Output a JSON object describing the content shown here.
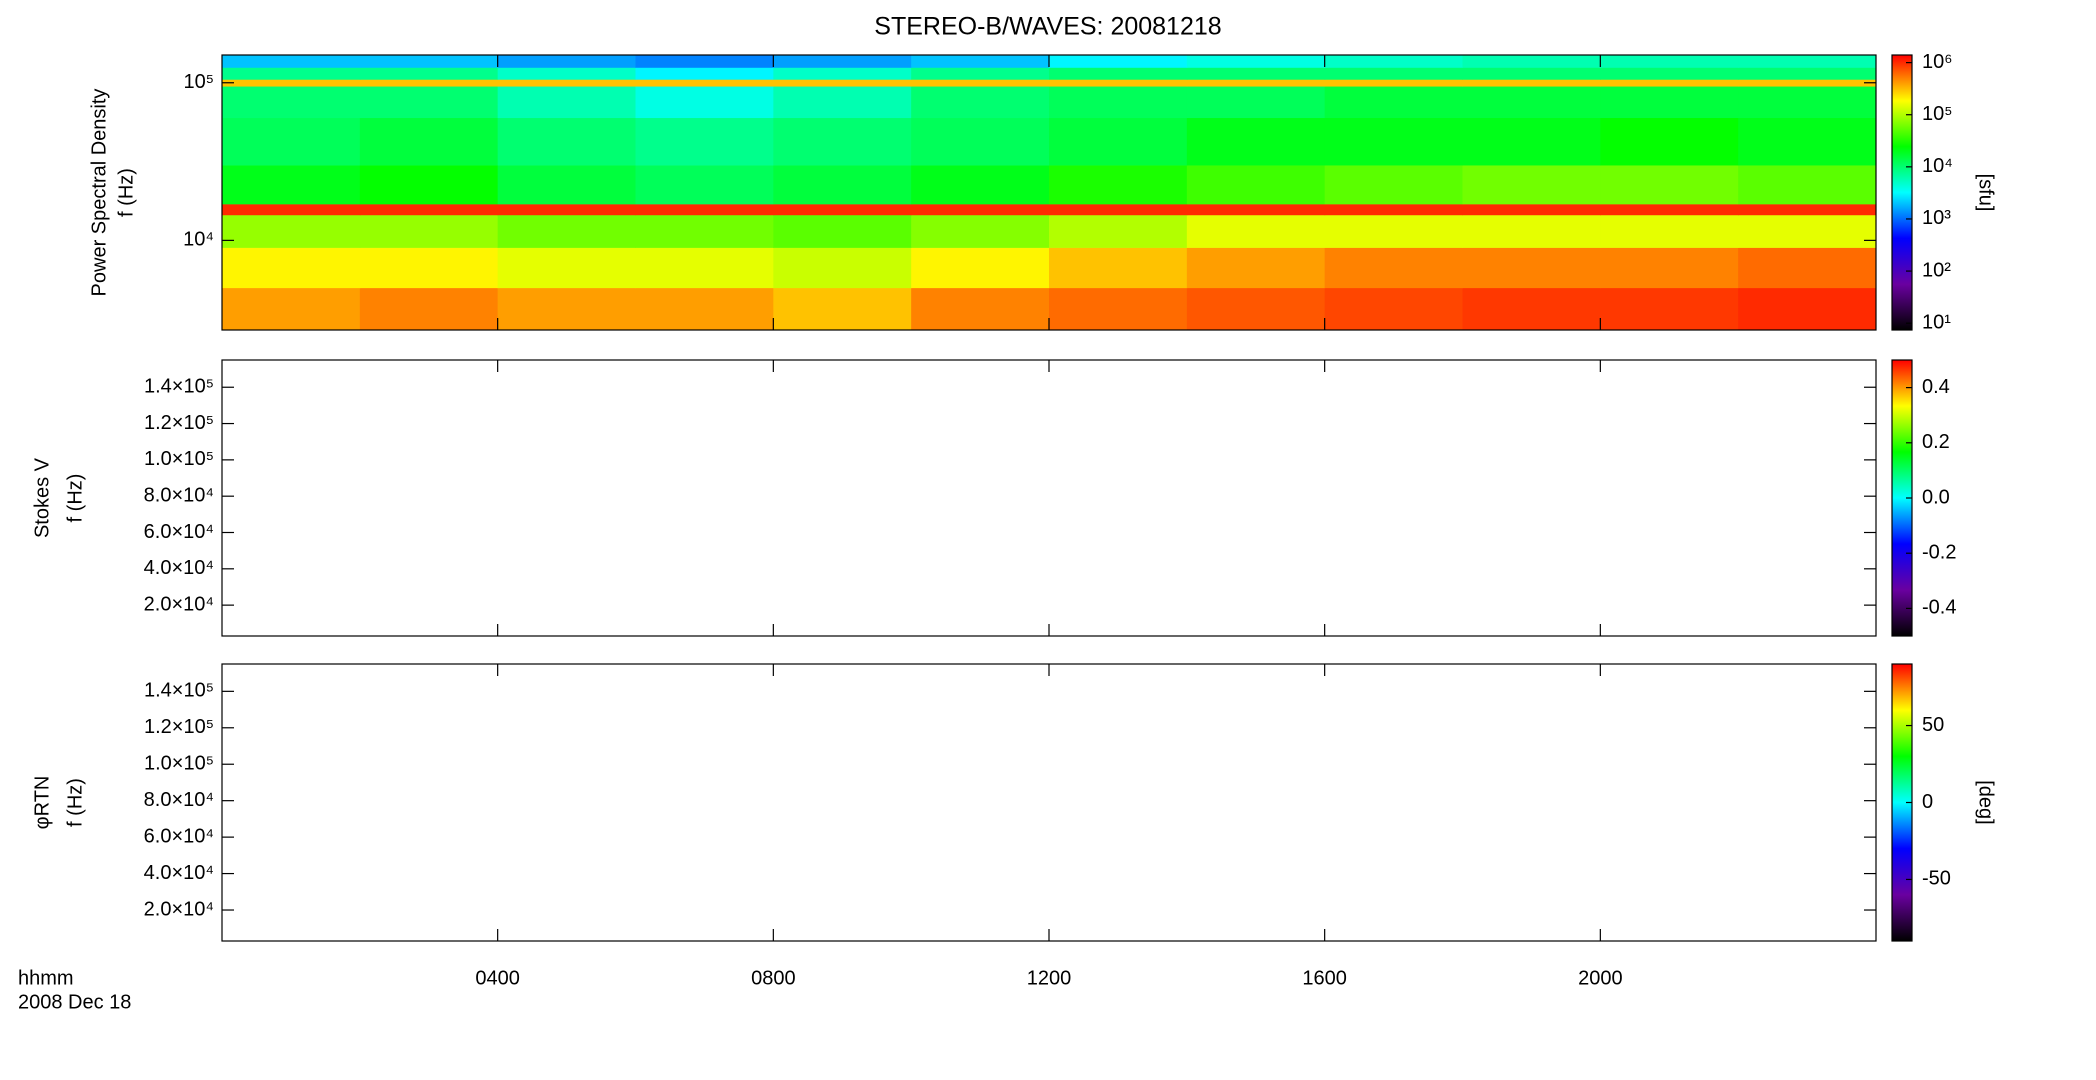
{
  "chart_data": [
    {
      "type": "heatmap",
      "title": "STEREO-B/WAVES: 20081218",
      "ylabel": "Power Spectral Density",
      "ylabel2": "f (Hz)",
      "zlabel": "[sfu]",
      "ylog": true,
      "zlog": true,
      "xlim": [
        0,
        24
      ],
      "xticks": [
        4,
        8,
        12,
        16,
        20
      ],
      "ylim": [
        2700,
        150000
      ],
      "yticks": [
        {
          "value": 100000,
          "label": "10⁵"
        },
        {
          "value": 10000,
          "label": "10⁴"
        }
      ],
      "zlim": [
        7.4,
        1400000
      ],
      "zticks": [
        {
          "value": 1000000,
          "label": "10⁶"
        },
        {
          "value": 100000,
          "label": "10⁵"
        },
        {
          "value": 10000,
          "label": "10⁴"
        },
        {
          "value": 1000,
          "label": "10³"
        },
        {
          "value": 100,
          "label": "10²"
        },
        {
          "value": 10,
          "label": "10¹"
        }
      ],
      "colormap": [
        "#000000",
        "#6a00a0",
        "#0000ff",
        "#00ffff",
        "#00ff00",
        "#ffff00",
        "#ff0000"
      ],
      "x": [
        0,
        2,
        4,
        6,
        8,
        10,
        12,
        14,
        16,
        18,
        20,
        22,
        24
      ],
      "y": [
        2700,
        5000,
        9000,
        14500,
        17000,
        30000,
        60000,
        95000,
        105000,
        125000,
        150000
      ],
      "values": [
        [
          400000,
          500000,
          400000,
          400000,
          300000,
          500000,
          600000,
          700000,
          800000,
          900000,
          900000,
          1000000
        ],
        [
          200000,
          200000,
          150000,
          150000,
          120000,
          200000,
          300000,
          400000,
          500000,
          500000,
          500000,
          600000
        ],
        [
          80000,
          80000,
          60000,
          60000,
          50000,
          70000,
          100000,
          150000,
          150000,
          150000,
          150000,
          150000
        ],
        [
          1000000,
          1000000,
          1000000,
          1000000,
          1000000,
          1000000,
          1000000,
          1000000,
          1000000,
          1000000,
          1000000,
          1000000
        ],
        [
          20000,
          25000,
          15000,
          12000,
          15000,
          20000,
          30000,
          40000,
          50000,
          60000,
          60000,
          50000
        ],
        [
          12000,
          15000,
          10000,
          8000,
          10000,
          12000,
          15000,
          20000,
          20000,
          20000,
          25000,
          20000
        ],
        [
          10000,
          10000,
          6000,
          4000,
          6000,
          10000,
          12000,
          12000,
          15000,
          15000,
          15000,
          15000
        ],
        [
          300000,
          300000,
          300000,
          300000,
          300000,
          300000,
          300000,
          300000,
          300000,
          300000,
          300000,
          300000
        ],
        [
          8000,
          8000,
          5000,
          3000,
          5000,
          8000,
          10000,
          10000,
          10000,
          10000,
          10000,
          10000
        ],
        [
          2000,
          2000,
          1500,
          1200,
          1500,
          2000,
          3000,
          4000,
          5000,
          6000,
          6000,
          6000
        ]
      ]
    },
    {
      "type": "heatmap",
      "ylabel": "Stokes V",
      "ylabel2": "f (Hz)",
      "ylog": false,
      "zlog": false,
      "xlim": [
        0,
        24
      ],
      "xticks": [
        4,
        8,
        12,
        16,
        20
      ],
      "ylim": [
        3000,
        155000
      ],
      "yticks": [
        {
          "value": 140000,
          "label": "1.4×10⁵"
        },
        {
          "value": 120000,
          "label": "1.2×10⁵"
        },
        {
          "value": 100000,
          "label": "1.0×10⁵"
        },
        {
          "value": 80000,
          "label": "8.0×10⁴"
        },
        {
          "value": 60000,
          "label": "6.0×10⁴"
        },
        {
          "value": 40000,
          "label": "4.0×10⁴"
        },
        {
          "value": 20000,
          "label": "2.0×10⁴"
        }
      ],
      "zlim": [
        -0.5,
        0.5
      ],
      "zticks": [
        0.4,
        0.2,
        {
          "value": 0,
          "label": "0.0"
        },
        -0.2,
        -0.4
      ],
      "colormap": [
        "#000000",
        "#6a00a0",
        "#0000ff",
        "#00ffff",
        "#00ff00",
        "#ffff00",
        "#ff0000"
      ]
    },
    {
      "type": "heatmap",
      "ylabel": "φRTN",
      "ylabel2": "f (Hz)",
      "zlabel": "[deg]",
      "ylog": false,
      "zlog": false,
      "xlim": [
        0,
        24
      ],
      "xticks": [
        {
          "value": 4,
          "label": "0400"
        },
        {
          "value": 8,
          "label": "0800"
        },
        {
          "value": 12,
          "label": "1200"
        },
        {
          "value": 16,
          "label": "1600"
        },
        {
          "value": 20,
          "label": "2000"
        }
      ],
      "xlabel": "hhmm",
      "date": "2008 Dec 18",
      "ylim": [
        3000,
        155000
      ],
      "yticks": [
        {
          "value": 140000,
          "label": "1.4×10⁵"
        },
        {
          "value": 120000,
          "label": "1.2×10⁵"
        },
        {
          "value": 100000,
          "label": "1.0×10⁵"
        },
        {
          "value": 80000,
          "label": "8.0×10⁴"
        },
        {
          "value": 60000,
          "label": "6.0×10⁴"
        },
        {
          "value": 40000,
          "label": "4.0×10⁴"
        },
        {
          "value": 20000,
          "label": "2.0×10⁴"
        }
      ],
      "zlim": [
        -90,
        90
      ],
      "zticks": [
        50,
        0,
        -50
      ],
      "colormap": [
        "#000000",
        "#6a00a0",
        "#0000ff",
        "#00ffff",
        "#00ff00",
        "#ffff00",
        "#ff0000"
      ]
    }
  ]
}
